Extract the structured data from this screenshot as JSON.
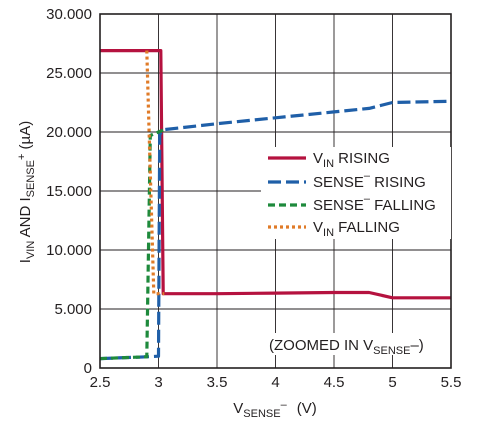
{
  "chart_data": {
    "type": "line",
    "xlabel": {
      "main": "V",
      "sub": "SENSE",
      "sup": "–",
      "unit": "(V)"
    },
    "ylabel": {
      "p1": "I",
      "sub1": "VIN",
      "p2": " AND I",
      "sub2": "SENSE",
      "sup2": "+",
      "unit": " (µA)"
    },
    "xlim": [
      2.5,
      5.5
    ],
    "ylim": [
      0,
      30000
    ],
    "xticks": [
      2.5,
      3,
      3.5,
      4,
      4.5,
      5,
      5.5
    ],
    "xtick_labels": [
      "2.5",
      "3",
      "3.5",
      "4",
      "4.5",
      "5",
      "5.5"
    ],
    "yticks": [
      0,
      5000,
      10000,
      15000,
      20000,
      25000,
      30000
    ],
    "ytick_labels": [
      "0",
      "5.000",
      "10.000",
      "15.000",
      "20.000",
      "25.000",
      "30.000"
    ],
    "grid": true,
    "legend_position": "right",
    "annotation": {
      "main": "(ZOOMED IN V",
      "sub": "SENSE",
      "end": "–)"
    },
    "series": [
      {
        "legend": {
          "main": "V",
          "sub": "IN",
          "end": " RISING"
        },
        "color": "#b5123f",
        "style": "solid",
        "points": [
          [
            2.5,
            26900
          ],
          [
            3.0,
            26900
          ],
          [
            3.02,
            26900
          ],
          [
            3.04,
            6300
          ],
          [
            3.5,
            6300
          ],
          [
            4.0,
            6350
          ],
          [
            4.5,
            6400
          ],
          [
            4.8,
            6400
          ],
          [
            5.0,
            5950
          ],
          [
            5.5,
            5950
          ]
        ]
      },
      {
        "legend": {
          "main": "SENSE",
          "sup": "–",
          "end": " RISING"
        },
        "color": "#1f5fa8",
        "style": "longdash",
        "points": [
          [
            2.5,
            800
          ],
          [
            2.9,
            950
          ],
          [
            3.0,
            1000
          ],
          [
            3.01,
            19800
          ],
          [
            3.05,
            20200
          ],
          [
            3.5,
            20700
          ],
          [
            4.0,
            21200
          ],
          [
            4.5,
            21700
          ],
          [
            4.8,
            22000
          ],
          [
            5.0,
            22500
          ],
          [
            5.5,
            22600
          ]
        ]
      },
      {
        "legend": {
          "main": "SENSE",
          "sup": "–",
          "end": " FALLING"
        },
        "color": "#1e8a3c",
        "style": "dash",
        "points": [
          [
            2.5,
            800
          ],
          [
            2.9,
            950
          ],
          [
            2.93,
            19700
          ],
          [
            3.0,
            20000
          ],
          [
            3.05,
            20200
          ]
        ]
      },
      {
        "legend": {
          "main": "V",
          "sub": "IN",
          "end": " FALLING"
        },
        "color": "#e07b28",
        "style": "dot",
        "points": [
          [
            2.9,
            26900
          ],
          [
            2.92,
            20000
          ],
          [
            2.96,
            6300
          ],
          [
            3.05,
            6300
          ]
        ]
      }
    ]
  }
}
